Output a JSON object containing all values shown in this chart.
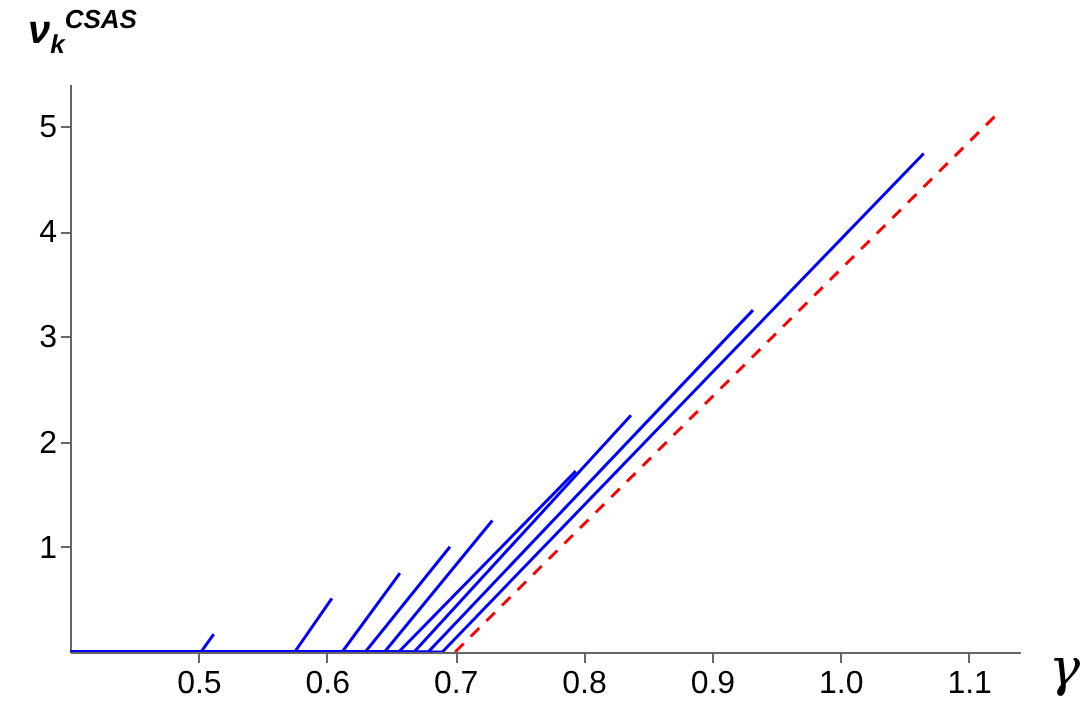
{
  "chart_data": {
    "type": "line",
    "xlabel": "γ",
    "ylabel": "ν$_{k}$$^{CSAS}$",
    "xlim": [
      0.4,
      1.14
    ],
    "xticks": [
      0.5,
      0.6,
      0.7,
      0.8,
      0.9,
      {
        "value": 1,
        "label": "1.0"
      },
      1.1
    ],
    "ylim": [
      0,
      5.4
    ],
    "yticks": [
      1,
      2,
      3,
      4,
      5
    ],
    "grid": false,
    "marker": "none",
    "series": [
      {
        "color": "#0000ff",
        "x": [
          0.4,
          0.502,
          0.512
        ],
        "values": [
          0,
          0,
          0.17
        ]
      },
      {
        "color": "#0000ff",
        "x": [
          0.4,
          0.575,
          0.604
        ],
        "values": [
          0,
          0,
          0.51
        ]
      },
      {
        "color": "#0000ff",
        "x": [
          0.4,
          0.612,
          0.657
        ],
        "values": [
          0,
          0,
          0.75
        ]
      },
      {
        "color": "#0000ff",
        "x": [
          0.4,
          0.63,
          0.696
        ],
        "values": [
          0,
          0,
          1.0
        ]
      },
      {
        "color": "#0000ff",
        "x": [
          0.4,
          0.645,
          0.729
        ],
        "values": [
          0,
          0,
          1.25
        ]
      },
      {
        "color": "#0000ff",
        "x": [
          0.4,
          0.656,
          0.794
        ],
        "values": [
          0,
          0,
          1.72
        ]
      },
      {
        "color": "#0000ff",
        "x": [
          0.4,
          0.668,
          0.837
        ],
        "values": [
          0,
          0,
          2.25
        ]
      },
      {
        "color": "#0000ff",
        "x": [
          0.4,
          0.679,
          0.932
        ],
        "values": [
          0,
          0,
          3.25
        ]
      },
      {
        "color": "#0000ff",
        "x": [
          0.4,
          0.69,
          1.065
        ],
        "values": [
          0,
          0,
          4.74
        ]
      },
      {
        "color": "#ff0000",
        "line_style": "dashed",
        "x": [
          0.7,
          1.121
        ],
        "values": [
          0,
          5.1
        ]
      }
    ]
  }
}
